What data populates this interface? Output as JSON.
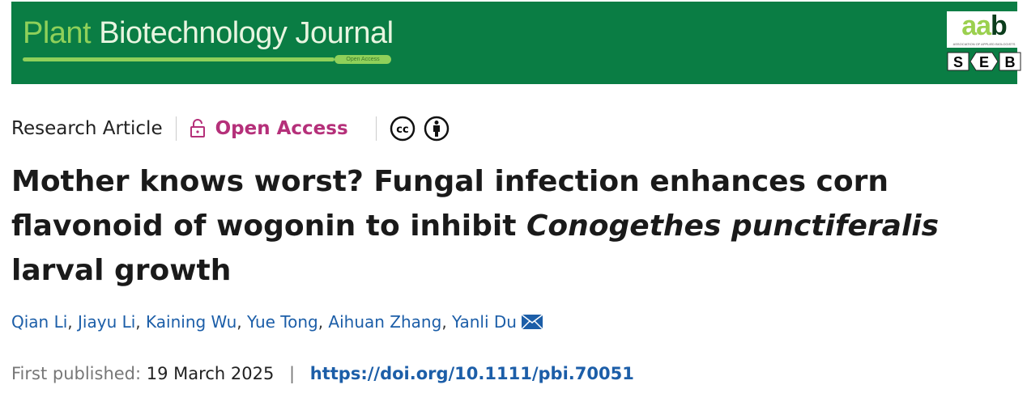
{
  "banner": {
    "journal_part1": "Plant",
    "journal_part2": "Biotechnology Journal",
    "open_access_tag": "Open Access",
    "logo_aab": "aab",
    "logo_aab_sub": "ASSOCIATION OF APPLIED BIOLOGISTS",
    "logo_seb": [
      "S",
      "E",
      "B"
    ]
  },
  "meta": {
    "article_type": "Research Article",
    "open_access": "Open Access",
    "license_icons": [
      "cc-icon",
      "by-icon"
    ]
  },
  "title": {
    "part1": "Mother knows worst? Fungal infection enhances corn flavonoid of wogonin to inhibit ",
    "italic": "Conogethes punctiferalis",
    "part2": " larval growth"
  },
  "authors": [
    "Qian Li",
    "Jiayu Li",
    "Kaining Wu",
    "Yue Tong",
    "Aihuan Zhang",
    "Yanli Du"
  ],
  "published": {
    "label": "First published:",
    "date": "19 March 2025",
    "separator": "|",
    "doi": "https://doi.org/10.1111/pbi.70051"
  },
  "colors": {
    "banner": "#0a7d44",
    "open_access": "#b5307a",
    "link": "#1c5ea8"
  }
}
